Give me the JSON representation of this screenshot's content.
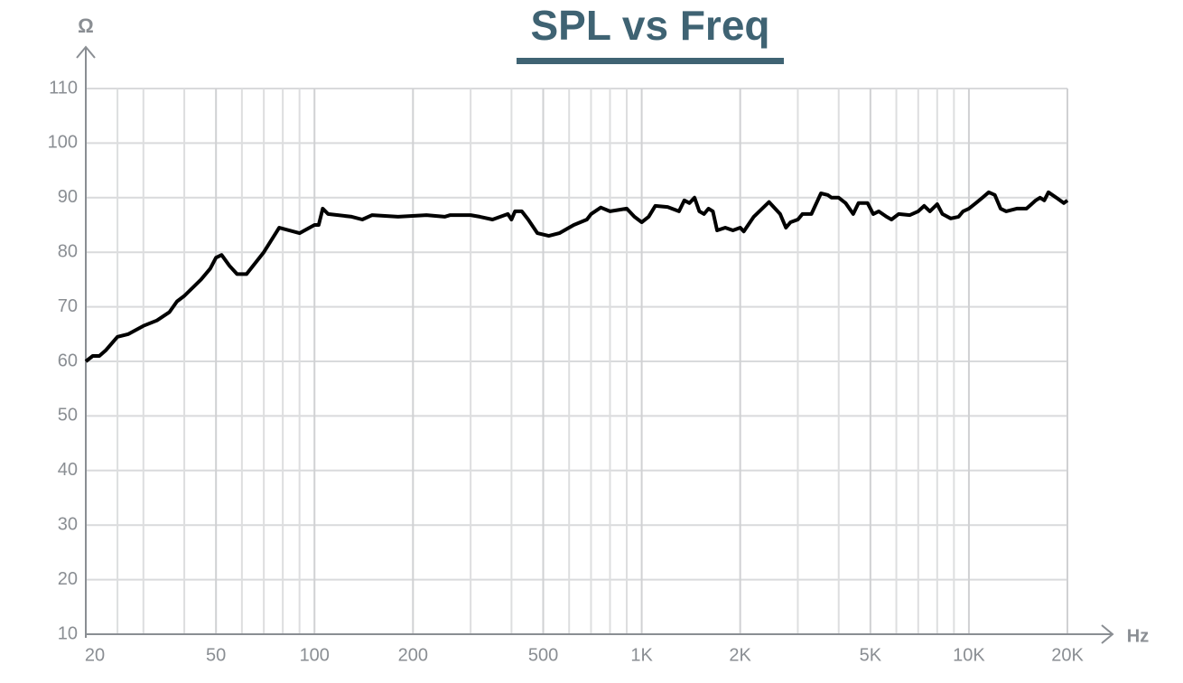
{
  "chart_data": {
    "type": "line",
    "title": "SPL vs Freq",
    "y_axis_label": "Ω",
    "x_axis_label": "Hz",
    "x_scale": "log",
    "grid": true,
    "color": "#000000",
    "xlim": [
      20,
      20000
    ],
    "ylim": [
      10,
      110
    ],
    "xticks": [
      20,
      50,
      100,
      200,
      500,
      {
        "value": 1000,
        "label": "1K"
      },
      {
        "value": 2000,
        "label": "2K"
      },
      {
        "value": 5000,
        "label": "5K"
      },
      {
        "value": 10000,
        "label": "10K"
      },
      {
        "value": 20000,
        "label": "20K"
      }
    ],
    "x_minor_grid": [
      25,
      30,
      40,
      60,
      70,
      80,
      90,
      300,
      400,
      600,
      700,
      800,
      900,
      3000,
      4000,
      6000,
      7000,
      8000,
      9000
    ],
    "yticks": [
      10,
      20,
      30,
      40,
      50,
      60,
      70,
      80,
      90,
      100,
      110
    ],
    "x": [
      20,
      21,
      22,
      23,
      25,
      27,
      30,
      33,
      36,
      38,
      40,
      45,
      48,
      50,
      52,
      55,
      58,
      62,
      70,
      78,
      90,
      100,
      103,
      106,
      110,
      130,
      140,
      150,
      180,
      220,
      250,
      260,
      300,
      320,
      350,
      390,
      400,
      410,
      430,
      450,
      480,
      520,
      560,
      620,
      680,
      700,
      750,
      800,
      900,
      950,
      1000,
      1050,
      1100,
      1200,
      1300,
      1350,
      1400,
      1450,
      1500,
      1550,
      1600,
      1650,
      1700,
      1800,
      1900,
      2000,
      2050,
      2200,
      2450,
      2650,
      2760,
      2850,
      3000,
      3100,
      3300,
      3530,
      3700,
      3800,
      4000,
      4200,
      4430,
      4600,
      4900,
      5100,
      5300,
      5600,
      5800,
      6100,
      6600,
      7000,
      7300,
      7600,
      8000,
      8300,
      8800,
      9300,
      9600,
      10000,
      10500,
      11000,
      11500,
      12000,
      12500,
      13000,
      14000,
      15000,
      16000,
      16500,
      17000,
      17500,
      18500,
      19500,
      20000
    ],
    "series": [
      {
        "name": "SPL",
        "color": "#000000",
        "values": [
          60,
          61,
          61,
          62,
          64.5,
          65,
          66.5,
          67.5,
          69,
          71,
          72,
          75,
          77,
          79,
          79.5,
          77.5,
          76,
          76,
          80,
          84.5,
          83.5,
          85,
          85,
          88,
          87,
          86.5,
          86,
          86.8,
          86.5,
          86.8,
          86.5,
          86.8,
          86.8,
          86.5,
          86,
          87,
          86,
          87.5,
          87.5,
          86,
          83.5,
          83,
          83.5,
          85,
          86,
          87,
          88.2,
          87.5,
          88,
          86.5,
          85.5,
          86.5,
          88.5,
          88.3,
          87.5,
          89.5,
          89,
          90,
          87.5,
          87,
          88,
          87.5,
          84,
          84.5,
          84,
          84.5,
          83.8,
          86.5,
          89.2,
          87,
          84.5,
          85.5,
          86,
          87,
          87,
          90.8,
          90.5,
          90,
          90,
          89,
          87,
          89,
          89,
          87,
          87.5,
          86.5,
          86,
          87,
          86.8,
          87.5,
          88.5,
          87.5,
          88.8,
          87,
          86.2,
          86.5,
          87.5,
          88,
          89,
          90,
          91,
          90.5,
          88,
          87.5,
          88,
          88,
          89.5,
          90,
          89.5,
          91,
          90,
          89,
          89.5
        ]
      }
    ]
  }
}
